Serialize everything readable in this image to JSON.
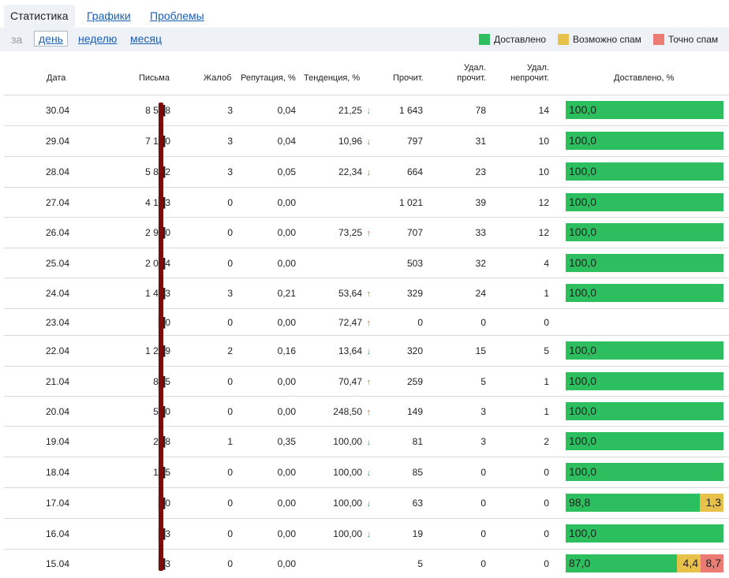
{
  "tabs": [
    {
      "label": "Статистика",
      "active": true
    },
    {
      "label": "Графики",
      "active": false
    },
    {
      "label": "Проблемы",
      "active": false
    }
  ],
  "period": {
    "label": "за",
    "options": [
      {
        "label": "день",
        "selected": true
      },
      {
        "label": "неделю",
        "selected": false
      },
      {
        "label": "месяц",
        "selected": false
      }
    ]
  },
  "legend": [
    {
      "label": "Доставлено",
      "color": "#2dbe60"
    },
    {
      "label": "Возможно спам",
      "color": "#e8c14a"
    },
    {
      "label": "Точно спам",
      "color": "#ec7b73"
    }
  ],
  "columns": {
    "date": "Дата",
    "letters": "Письма",
    "complaints": "Жалоб",
    "reputation": "Репутация, %",
    "trend": "Тенденция, %",
    "read": "Прочит.",
    "del_read": "Удал.\nпрочит.",
    "del_unread": "Удал.\nнепрочит.",
    "delivered": "Доставлено, %"
  },
  "rows": [
    {
      "date": "30.04",
      "letters": "8 5█8",
      "complaints": "3",
      "reputation": "0,04",
      "trend": "21,25",
      "trend_dir": "down",
      "read": "1 643",
      "del_read": "78",
      "del_unread": "14",
      "delivered": [
        {
          "type": "ok",
          "value": 100.0,
          "label": "100,0"
        }
      ]
    },
    {
      "date": "29.04",
      "letters": "7 1█0",
      "complaints": "3",
      "reputation": "0,04",
      "trend": "10,96",
      "trend_dir": "down",
      "read": "797",
      "del_read": "31",
      "del_unread": "10",
      "delivered": [
        {
          "type": "ok",
          "value": 100.0,
          "label": "100,0"
        }
      ]
    },
    {
      "date": "28.04",
      "letters": "5 8█2",
      "complaints": "3",
      "reputation": "0,05",
      "trend": "22,34",
      "trend_dir": "down",
      "read": "664",
      "del_read": "23",
      "del_unread": "10",
      "delivered": [
        {
          "type": "ok",
          "value": 100.0,
          "label": "100,0"
        }
      ]
    },
    {
      "date": "27.04",
      "letters": "4 1█3",
      "complaints": "0",
      "reputation": "0,00",
      "trend": "",
      "trend_dir": "",
      "read": "1 021",
      "del_read": "39",
      "del_unread": "12",
      "delivered": [
        {
          "type": "ok",
          "value": 100.0,
          "label": "100,0"
        }
      ]
    },
    {
      "date": "26.04",
      "letters": "2 9█0",
      "complaints": "0",
      "reputation": "0,00",
      "trend": "73,25",
      "trend_dir": "up",
      "read": "707",
      "del_read": "33",
      "del_unread": "12",
      "delivered": [
        {
          "type": "ok",
          "value": 100.0,
          "label": "100,0"
        }
      ]
    },
    {
      "date": "25.04",
      "letters": "2 0█4",
      "complaints": "0",
      "reputation": "0,00",
      "trend": "",
      "trend_dir": "",
      "read": "503",
      "del_read": "32",
      "del_unread": "4",
      "delivered": [
        {
          "type": "ok",
          "value": 100.0,
          "label": "100,0"
        }
      ]
    },
    {
      "date": "24.04",
      "letters": "1 4█3",
      "complaints": "3",
      "reputation": "0,21",
      "trend": "53,64",
      "trend_dir": "up",
      "read": "329",
      "del_read": "24",
      "del_unread": "1",
      "delivered": [
        {
          "type": "ok",
          "value": 100.0,
          "label": "100,0"
        }
      ]
    },
    {
      "date": "23.04",
      "letters": "█0",
      "complaints": "0",
      "reputation": "0,00",
      "trend": "72,47",
      "trend_dir": "up",
      "read": "0",
      "del_read": "0",
      "del_unread": "0",
      "delivered": []
    },
    {
      "date": "22.04",
      "letters": "1 2█9",
      "complaints": "2",
      "reputation": "0,16",
      "trend": "13,64",
      "trend_dir": "down",
      "read": "320",
      "del_read": "15",
      "del_unread": "5",
      "delivered": [
        {
          "type": "ok",
          "value": 100.0,
          "label": "100,0"
        }
      ]
    },
    {
      "date": "21.04",
      "letters": "8█5",
      "complaints": "0",
      "reputation": "0,00",
      "trend": "70,47",
      "trend_dir": "up",
      "read": "259",
      "del_read": "5",
      "del_unread": "1",
      "delivered": [
        {
          "type": "ok",
          "value": 100.0,
          "label": "100,0"
        }
      ]
    },
    {
      "date": "20.04",
      "letters": "5█0",
      "complaints": "0",
      "reputation": "0,00",
      "trend": "248,50",
      "trend_dir": "up",
      "read": "149",
      "del_read": "3",
      "del_unread": "1",
      "delivered": [
        {
          "type": "ok",
          "value": 100.0,
          "label": "100,0"
        }
      ]
    },
    {
      "date": "19.04",
      "letters": "2█8",
      "complaints": "1",
      "reputation": "0,35",
      "trend": "100,00",
      "trend_dir": "down",
      "read": "81",
      "del_read": "3",
      "del_unread": "2",
      "delivered": [
        {
          "type": "ok",
          "value": 100.0,
          "label": "100,0"
        }
      ]
    },
    {
      "date": "18.04",
      "letters": "1█5",
      "complaints": "0",
      "reputation": "0,00",
      "trend": "100,00",
      "trend_dir": "down",
      "read": "85",
      "del_read": "0",
      "del_unread": "0",
      "delivered": [
        {
          "type": "ok",
          "value": 100.0,
          "label": "100,0"
        }
      ]
    },
    {
      "date": "17.04",
      "letters": "█0",
      "complaints": "0",
      "reputation": "0,00",
      "trend": "100,00",
      "trend_dir": "down",
      "read": "63",
      "del_read": "0",
      "del_unread": "0",
      "delivered": [
        {
          "type": "ok",
          "value": 85.0,
          "label": "98,8"
        },
        {
          "type": "maybe",
          "value": 15.0,
          "label": "1,3"
        }
      ]
    },
    {
      "date": "16.04",
      "letters": "█3",
      "complaints": "0",
      "reputation": "0,00",
      "trend": "100,00",
      "trend_dir": "down",
      "read": "19",
      "del_read": "0",
      "del_unread": "0",
      "delivered": [
        {
          "type": "ok",
          "value": 100.0,
          "label": "100,0"
        }
      ]
    },
    {
      "date": "15.04",
      "letters": "█3",
      "complaints": "0",
      "reputation": "0,00",
      "trend": "",
      "trend_dir": "",
      "read": "5",
      "del_read": "0",
      "del_unread": "0",
      "delivered": [
        {
          "type": "ok",
          "value": 70.5,
          "label": "87,0"
        },
        {
          "type": "maybe",
          "value": 15.0,
          "label": "4,4"
        },
        {
          "type": "spam",
          "value": 14.5,
          "label": "8,7"
        }
      ]
    }
  ]
}
